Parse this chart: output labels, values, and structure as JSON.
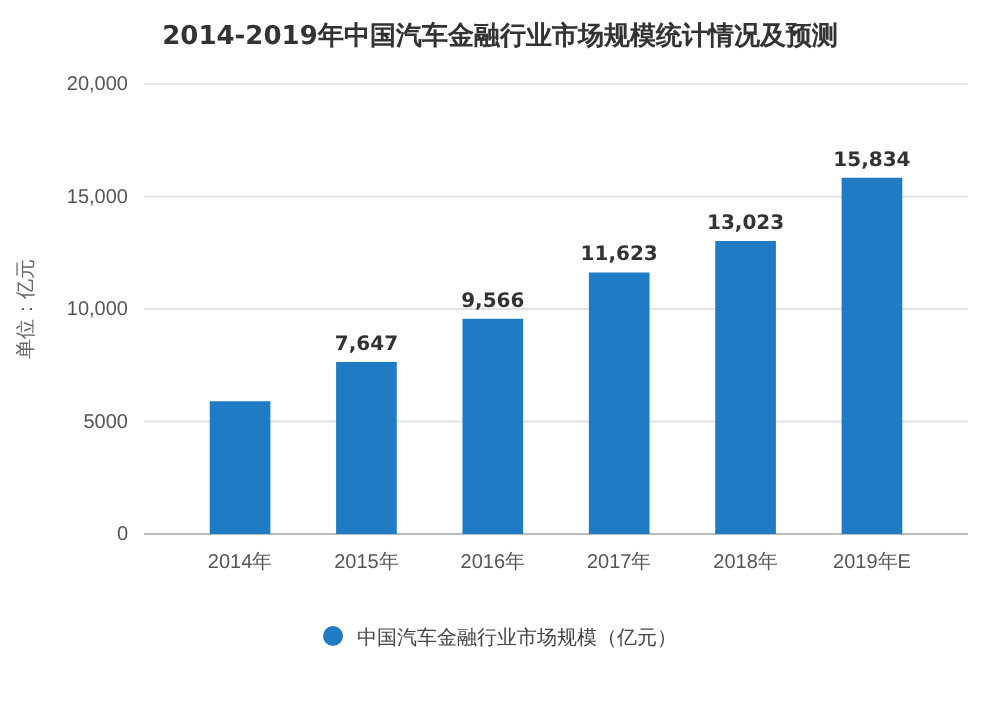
{
  "chart_data": {
    "type": "bar",
    "title": "2014-2019年中国汽车金融行业市场规模统计情况及预测",
    "ylabel": "单位：亿元",
    "categories": [
      "2014年",
      "2015年",
      "2016年",
      "2017年",
      "2018年",
      "2019年E"
    ],
    "series": [
      {
        "name": "中国汽车金融行业市场规模（亿元）",
        "color": "#1f7bc4",
        "values": [
          5900,
          7647,
          9566,
          11623,
          13023,
          15834
        ],
        "value_labels": [
          null,
          "7,647",
          "9,566",
          "11,623",
          "13,023",
          "15,834"
        ]
      }
    ],
    "ylim": [
      0,
      20000
    ],
    "yticks": [
      {
        "value": 0,
        "label": "0"
      },
      {
        "value": 5000,
        "label": "5000"
      },
      {
        "value": 10000,
        "label": "10,000"
      },
      {
        "value": 15000,
        "label": "15,000"
      },
      {
        "value": 20000,
        "label": "20,000"
      }
    ],
    "grid": "y",
    "legend": "bottom"
  }
}
